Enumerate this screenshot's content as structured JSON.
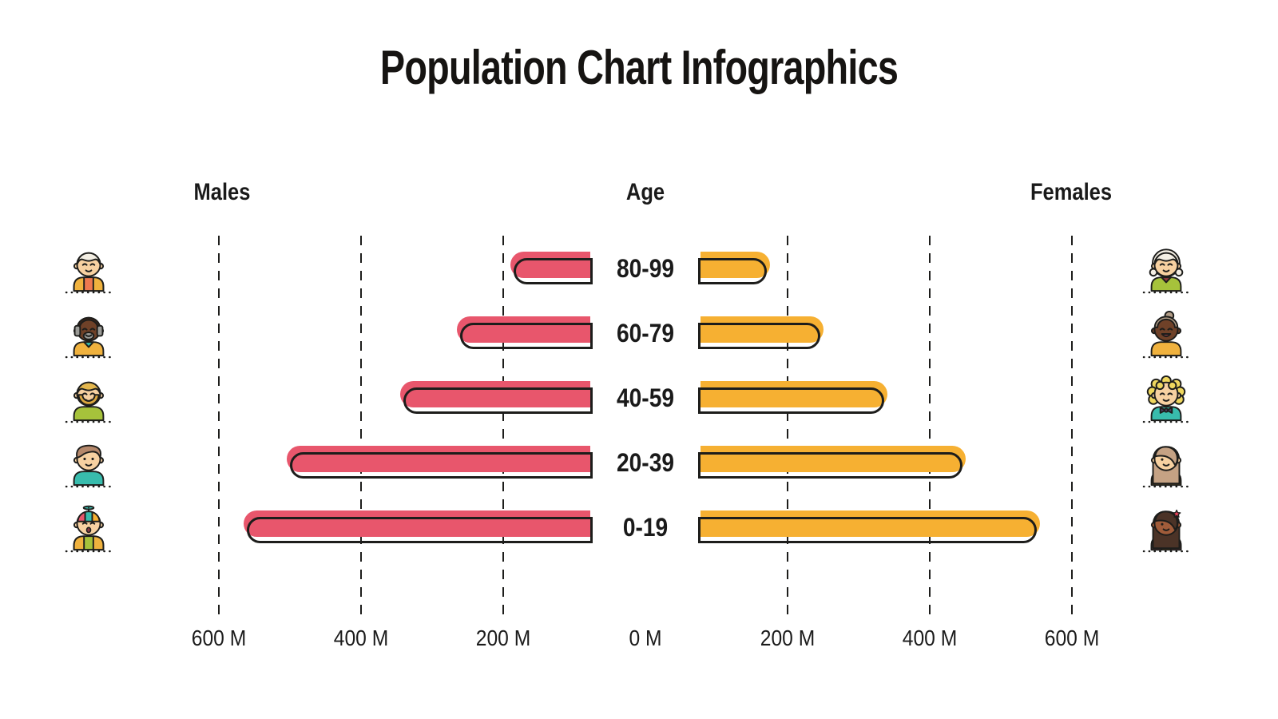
{
  "title": "Population Chart Infographics",
  "headers": {
    "males": "Males",
    "age": "Age",
    "females": "Females"
  },
  "axis_labels": [
    "600 M",
    "400 M",
    "200 M",
    "0 M",
    "200 M",
    "400 M",
    "600 M"
  ],
  "chart_data": {
    "type": "bar",
    "variant": "population-pyramid",
    "title": "Population Chart Infographics",
    "unit": "millions of people",
    "categories": [
      "80-99",
      "60-79",
      "40-59",
      "20-39",
      "0-19"
    ],
    "series": [
      {
        "name": "Males",
        "side": "left",
        "color": "#E8566C",
        "values": [
          190,
          265,
          345,
          505,
          565
        ]
      },
      {
        "name": "Females",
        "side": "right",
        "color": "#F6B032",
        "values": [
          175,
          250,
          340,
          450,
          555
        ]
      }
    ],
    "x_ticks_left": [
      "600 M",
      "400 M",
      "200 M"
    ],
    "x_tick_center": "0 M",
    "x_ticks_right": [
      "200 M",
      "400 M",
      "600 M"
    ],
    "xlim_each_side": [
      0,
      700
    ],
    "grid": "dashed-vertical",
    "legend_position": "column-headers",
    "outline_color": "#1D1D1B",
    "background": "#FFFFFF"
  },
  "avatars": {
    "male": [
      {
        "name": "elderly-man-avatar",
        "hair_style": "short",
        "skin": "#F7D1A1",
        "hair": "#F3EEE3",
        "shirt": "#EE7950",
        "sleeve": "#F0B23E",
        "eyes": "closed",
        "mouth": "smile"
      },
      {
        "name": "senior-man-avatar",
        "hair_style": "bald",
        "skin": "#6F4128",
        "hair": "#3A241A",
        "beard": "#9B9B97",
        "shirt": "#F0B23E",
        "collar": "#38BCAD",
        "eyes": "closed",
        "mouth": "smile"
      },
      {
        "name": "bearded-man-avatar",
        "hair_style": "short",
        "skin": "#F7D1A1",
        "hair": "#E3B64D",
        "beard": "#DAA63F",
        "shirt": "#A6C23B",
        "eyes": "closed",
        "mouth": "smile"
      },
      {
        "name": "young-man-avatar",
        "hair_style": "pompadour",
        "skin": "#F7D1A1",
        "hair": "#B5886B",
        "shirt": "#38BCAD",
        "eyes": "dots",
        "mouth": "smile"
      },
      {
        "name": "boy-avatar",
        "hair_style": "cap",
        "skin": "#F7D1A1",
        "hair": "#E8566C",
        "cap_colors": [
          "#E8566C",
          "#38BCAD",
          "#F6B032"
        ],
        "propeller": "#38BCAD",
        "shirt": "#A6C23B",
        "sleeve": "#F0B23E",
        "eyes": "closed",
        "mouth": "open"
      }
    ],
    "female": [
      {
        "name": "elderly-woman-avatar",
        "hair_style": "bob",
        "skin": "#F7D1A1",
        "hair": "#F4EFE4",
        "shirt": "#A6C23B",
        "collar": "#8E3A3F",
        "eyes": "closed",
        "mouth": "smile"
      },
      {
        "name": "senior-woman-avatar",
        "hair_style": "bun",
        "skin": "#6F4128",
        "hair": "#B29C86",
        "shirt": "#F0B23E",
        "eyes": "closed",
        "mouth": "grin"
      },
      {
        "name": "curly-woman-avatar",
        "hair_style": "curly",
        "skin": "#F7D1A1",
        "hair": "#EFD75E",
        "shirt": "#38BCAD",
        "bow": "#4E3D66",
        "eyes": "closed",
        "mouth": "smile"
      },
      {
        "name": "young-woman-avatar",
        "hair_style": "sweep",
        "skin": "#F7D1A1",
        "hair": "#C5A284",
        "shirt": "#F0B23E",
        "eyes": "dot-left",
        "mouth": "smile"
      },
      {
        "name": "girl-avatar",
        "hair_style": "sweep",
        "skin": "#A05C3A",
        "hair": "#4B3327",
        "flower": "#E8435A",
        "shirt": "#F0B23E",
        "sleeve": "#F27997",
        "eyes": "dot-left",
        "mouth": "smile"
      }
    ]
  }
}
